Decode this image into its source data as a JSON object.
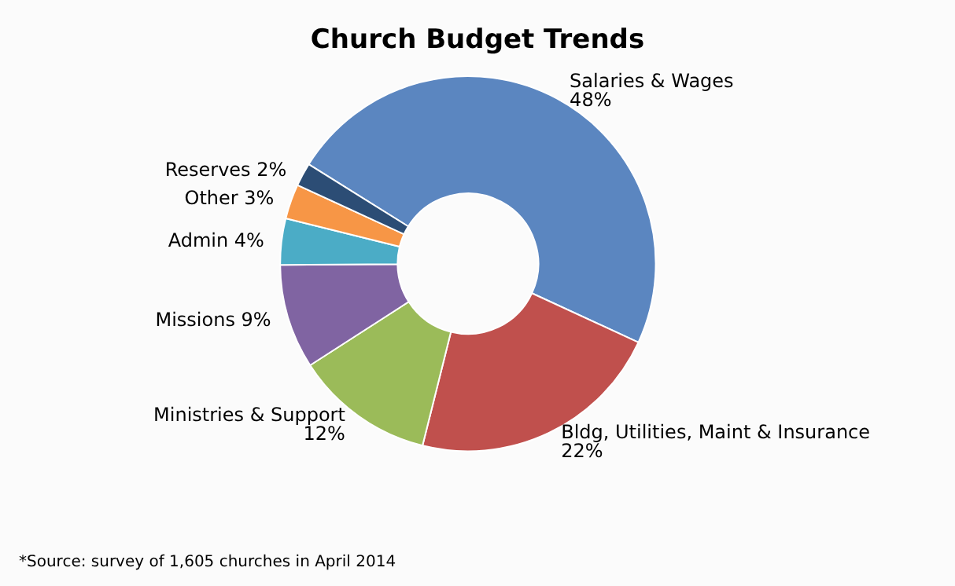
{
  "chart_data": {
    "type": "donut",
    "title": "Church Budget Trends",
    "categories": [
      "Salaries & Wages",
      "Bldg, Utilities, Maint & Insurance",
      "Ministries & Support",
      "Missions",
      "Admin",
      "Other",
      "Reserves"
    ],
    "values": [
      48,
      22,
      12,
      9,
      4,
      3,
      2
    ],
    "colors": [
      "#5b86c0",
      "#c0504d",
      "#9bbb59",
      "#8064a2",
      "#4bacc6",
      "#f79646",
      "#2c4d75"
    ],
    "value_labels": [
      "48%",
      "22%",
      "12%",
      "9%",
      "4%",
      "3%",
      "2%"
    ],
    "legend": false,
    "annotations": [
      "*Source: survey of 1,605 churches in April 2014"
    ]
  }
}
